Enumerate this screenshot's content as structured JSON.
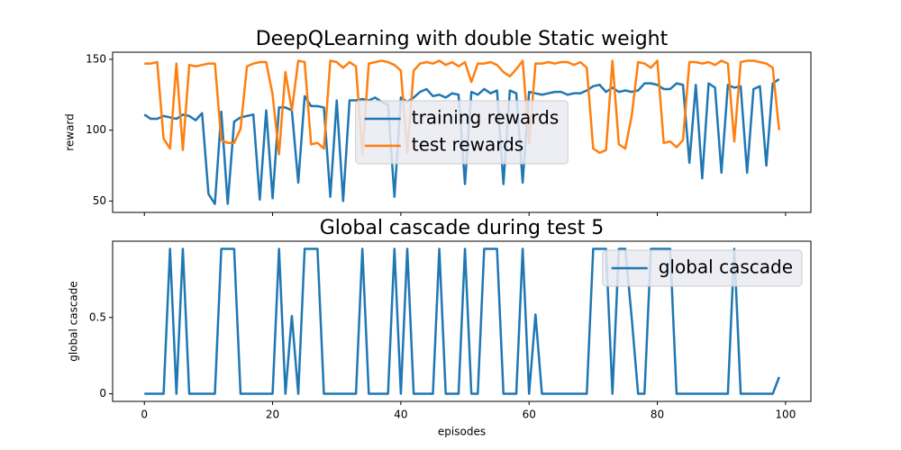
{
  "chart_data": [
    {
      "type": "line",
      "title": "DeepQLearning with double Static weight",
      "ylabel": "reward",
      "x": [
        0,
        1,
        2,
        3,
        4,
        5,
        6,
        7,
        8,
        9,
        10,
        11,
        12,
        13,
        14,
        15,
        16,
        17,
        18,
        19,
        20,
        21,
        22,
        23,
        24,
        25,
        26,
        27,
        28,
        29,
        30,
        31,
        32,
        33,
        34,
        35,
        36,
        37,
        38,
        39,
        40,
        41,
        42,
        43,
        44,
        45,
        46,
        47,
        48,
        49,
        50,
        51,
        52,
        53,
        54,
        55,
        56,
        57,
        58,
        59,
        60,
        61,
        62,
        63,
        64,
        65,
        66,
        67,
        68,
        69,
        70,
        71,
        72,
        73,
        74,
        75,
        76,
        77,
        78,
        79,
        80,
        81,
        82,
        83,
        84,
        85,
        86,
        87,
        88,
        89,
        90,
        91,
        92,
        93,
        94,
        95,
        96,
        97,
        98,
        99
      ],
      "series": [
        {
          "name": "training rewards",
          "color": "#1f77b4",
          "values": [
            111,
            108,
            108,
            110,
            109,
            108,
            111,
            110,
            107,
            112,
            55,
            48,
            113,
            48,
            106,
            109,
            110,
            111,
            51,
            114,
            52,
            116,
            116,
            114,
            63,
            124,
            117,
            117,
            116,
            53,
            121,
            50,
            121,
            121,
            122,
            121,
            123,
            120,
            118,
            53,
            123,
            120,
            123,
            127,
            129,
            124,
            125,
            123,
            126,
            125,
            62,
            127,
            125,
            129,
            126,
            128,
            62,
            128,
            126,
            63,
            127,
            126,
            125,
            126,
            127,
            127,
            125,
            126,
            126,
            128,
            131,
            132,
            127,
            130,
            127,
            128,
            127,
            128,
            133,
            133,
            132,
            129,
            129,
            133,
            132,
            77,
            132,
            66,
            133,
            130,
            70,
            132,
            130,
            131,
            70,
            129,
            131,
            75,
            133,
            136
          ]
        },
        {
          "name": "test rewards",
          "color": "#ff7f0e",
          "values": [
            147,
            147,
            148,
            94,
            87,
            147,
            86,
            146,
            145,
            146,
            147,
            147,
            93,
            91,
            91,
            101,
            145,
            147,
            148,
            148,
            125,
            83,
            141,
            114,
            149,
            148,
            90,
            91,
            87,
            149,
            148,
            144,
            148,
            145,
            83,
            147,
            148,
            149,
            148,
            146,
            142,
            84,
            142,
            147,
            148,
            147,
            149,
            146,
            148,
            145,
            148,
            134,
            147,
            147,
            148,
            146,
            141,
            138,
            143,
            149,
            91,
            147,
            147,
            148,
            147,
            148,
            148,
            146,
            148,
            144,
            87,
            84,
            86,
            149,
            90,
            87,
            110,
            148,
            147,
            144,
            149,
            91,
            92,
            88,
            93,
            148,
            148,
            147,
            148,
            146,
            149,
            147,
            92,
            148,
            149,
            149,
            148,
            147,
            144,
            100
          ]
        }
      ],
      "xlim": [
        -4.95,
        103.95
      ],
      "xticks": [
        0,
        20,
        40,
        60,
        80,
        100
      ],
      "ylim": [
        42,
        155
      ],
      "yticks": [
        50,
        100,
        150
      ],
      "legend": "center"
    },
    {
      "type": "line",
      "title": "Global cascade during test 5",
      "ylabel": "global cascade",
      "xlabel": "episodes",
      "x": [
        0,
        1,
        2,
        3,
        4,
        5,
        6,
        7,
        8,
        9,
        10,
        11,
        12,
        13,
        14,
        15,
        16,
        17,
        18,
        19,
        20,
        21,
        22,
        23,
        24,
        25,
        26,
        27,
        28,
        29,
        30,
        31,
        32,
        33,
        34,
        35,
        36,
        37,
        38,
        39,
        40,
        41,
        42,
        43,
        44,
        45,
        46,
        47,
        48,
        49,
        50,
        51,
        52,
        53,
        54,
        55,
        56,
        57,
        58,
        59,
        60,
        61,
        62,
        63,
        64,
        65,
        66,
        67,
        68,
        69,
        70,
        71,
        72,
        73,
        74,
        75,
        76,
        77,
        78,
        79,
        80,
        81,
        82,
        83,
        84,
        85,
        86,
        87,
        88,
        89,
        90,
        91,
        92,
        93,
        94,
        95,
        96,
        97,
        98,
        99
      ],
      "series": [
        {
          "name": "global cascade",
          "color": "#1f77b4",
          "values": [
            0,
            0,
            0,
            0,
            0.95,
            0,
            0.95,
            0,
            0,
            0,
            0,
            0,
            0.95,
            0.95,
            0.95,
            0,
            0,
            0,
            0,
            0,
            0,
            0.95,
            0,
            0.51,
            0,
            0.95,
            0.95,
            0.95,
            0,
            0,
            0,
            0,
            0,
            0,
            0.95,
            0,
            0,
            0,
            0,
            0.95,
            0,
            0.95,
            0,
            0,
            0,
            0,
            0.95,
            0,
            0,
            0,
            0.95,
            0,
            0,
            0.95,
            0.95,
            0.95,
            0,
            0,
            0,
            0.95,
            0,
            0.52,
            0,
            0,
            0,
            0,
            0,
            0,
            0,
            0,
            0.95,
            0.95,
            0.95,
            0,
            0.95,
            0.95,
            0.5,
            0,
            0,
            0.95,
            0.95,
            0.95,
            0.95,
            0,
            0,
            0,
            0,
            0,
            0,
            0,
            0,
            0,
            0.95,
            0,
            0,
            0,
            0,
            0,
            0,
            0.11
          ]
        }
      ],
      "xlim": [
        -4.95,
        103.95
      ],
      "xticks": [
        0,
        20,
        40,
        60,
        80,
        100
      ],
      "ylim": [
        -0.05,
        1.0
      ],
      "yticks": [
        0.0,
        0.5
      ],
      "legend": "upper right"
    }
  ]
}
